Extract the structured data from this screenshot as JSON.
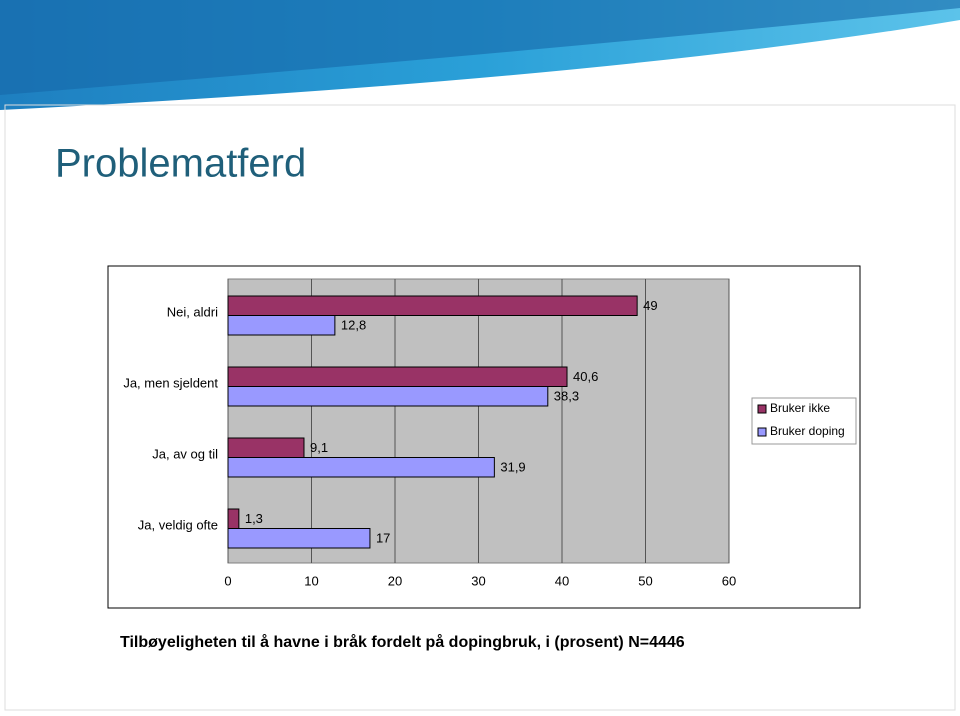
{
  "title": "Problematferd",
  "chart_data": {
    "type": "hbar",
    "caption": "Tilbøyeligheten til å havne i bråk fordelt på dopingbruk, i (prosent) N=4446",
    "categories": [
      "Nei, aldri",
      "Ja, men sjeldent",
      "Ja, av og til",
      "Ja, veldig ofte"
    ],
    "series": [
      {
        "name": "Bruker ikke",
        "color": "#993366",
        "values": [
          49,
          40.6,
          9.1,
          1.3
        ],
        "value_labels": [
          "49",
          "40,6",
          "9,1",
          "1,3"
        ]
      },
      {
        "name": "Bruker doping",
        "color": "#9999ff",
        "values": [
          12.8,
          38.3,
          31.9,
          17
        ],
        "value_labels": [
          "12,8",
          "38,3",
          "31,9",
          "17"
        ]
      }
    ],
    "xlim": [
      0,
      60
    ],
    "xticks": [
      0,
      10,
      20,
      30,
      40,
      50,
      60
    ],
    "grid": true,
    "legend": "right"
  }
}
